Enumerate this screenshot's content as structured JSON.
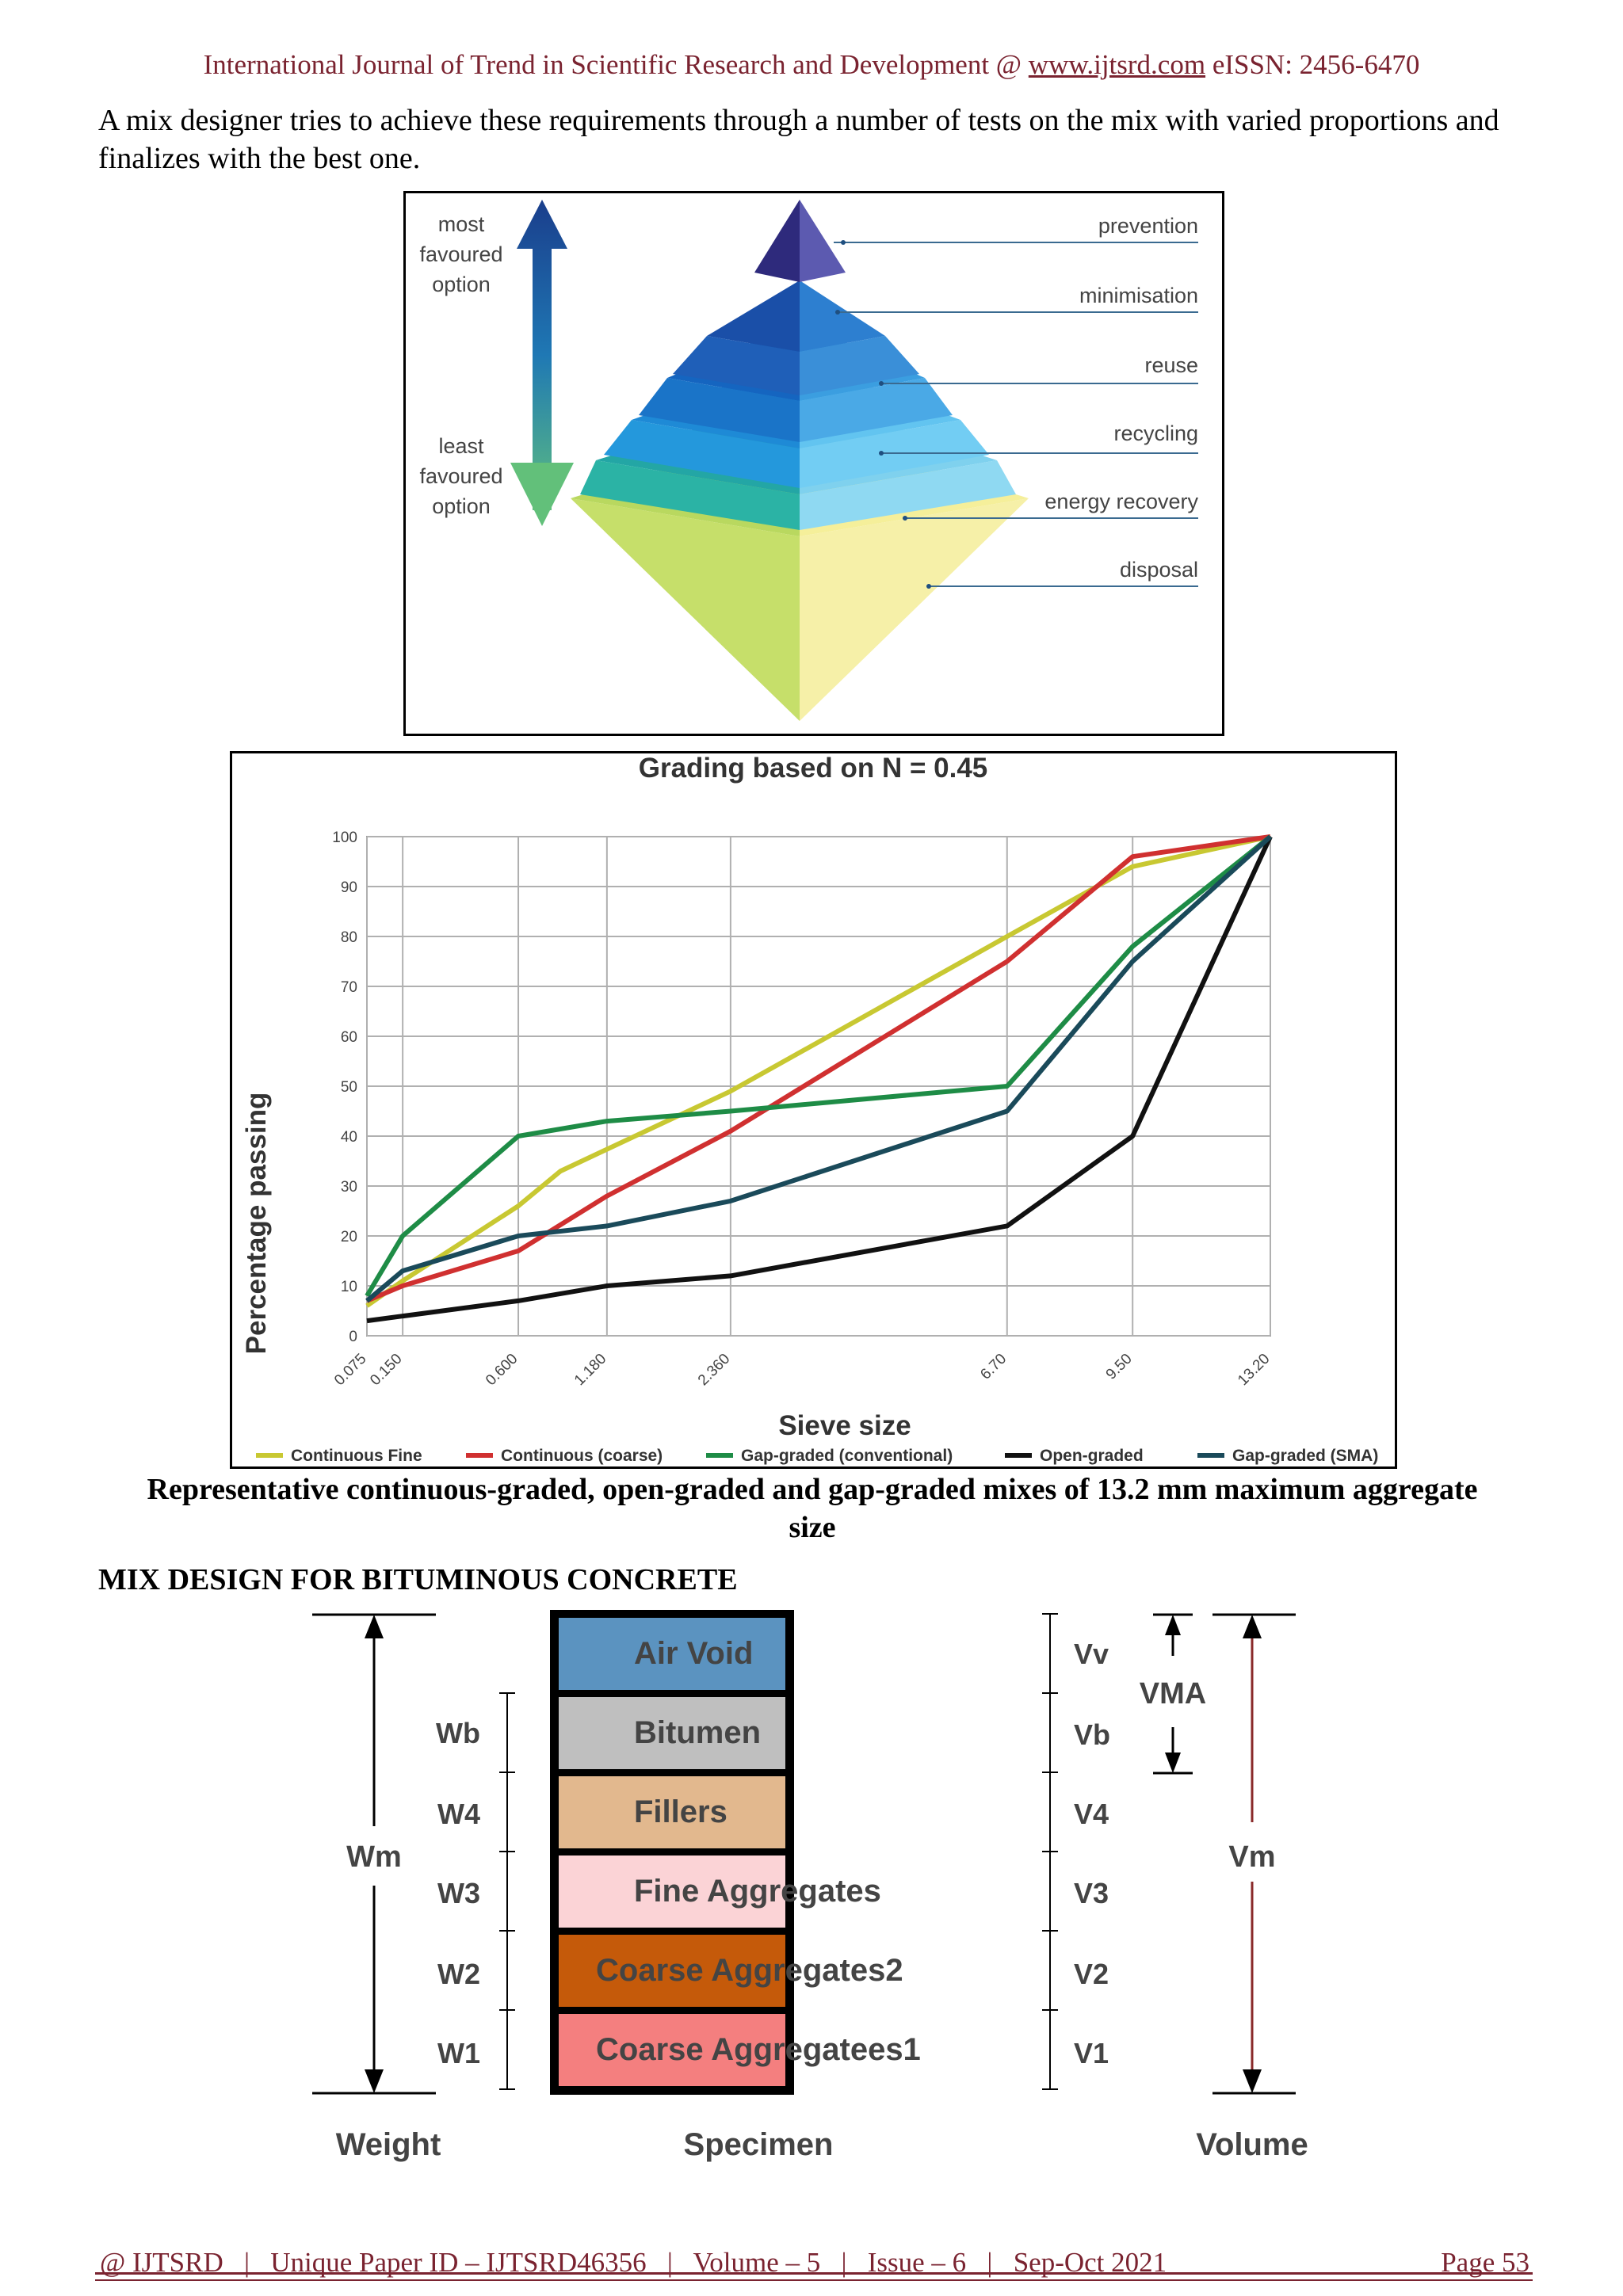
{
  "header": {
    "journal": "International Journal of Trend in Scientific Research and Development @",
    "url": "www.ijtsrd.com",
    "eissn": "eISSN: 2456-6470"
  },
  "intro_paragraph": "A mix designer tries to achieve these requirements through a number of tests on the mix with varied proportions and finalizes with the best one.",
  "pyramid": {
    "top_label": [
      "most",
      "favoured",
      "option"
    ],
    "bottom_label": [
      "least",
      "favoured",
      "option"
    ],
    "levels": [
      "prevention",
      "minimisation",
      "reuse",
      "recycling",
      "energy recovery",
      "disposal"
    ]
  },
  "chart_data": {
    "type": "line",
    "title": "Grading based on N = 0.45",
    "xlabel": "Sieve size",
    "ylabel": "Percentage passing",
    "x_tick_labels": [
      "0.075",
      "0.150",
      "0.600",
      "1.180",
      "2.360",
      "6.70",
      "9.50",
      "13.20"
    ],
    "x": [
      0.075,
      0.15,
      0.6,
      1.18,
      2.36,
      6.7,
      9.5,
      13.2
    ],
    "x_scale": "power 0.45",
    "ylim": [
      0,
      100
    ],
    "y_ticks": [
      0,
      10,
      20,
      30,
      40,
      50,
      60,
      70,
      80,
      90,
      100
    ],
    "grid": true,
    "legend_position": "bottom",
    "series": [
      {
        "name": "Continuous Fine",
        "color": "#c8c832",
        "x": [
          0.075,
          0.15,
          0.6,
          0.85,
          2.36,
          6.7,
          9.5,
          13.2
        ],
        "values": [
          6,
          11,
          26,
          33,
          49,
          80,
          94,
          100
        ]
      },
      {
        "name": "Continuous (coarse)",
        "color": "#d03030",
        "x": [
          0.075,
          0.15,
          0.6,
          1.18,
          2.36,
          6.7,
          9.5,
          13.2
        ],
        "values": [
          7,
          10,
          17,
          28,
          41,
          75,
          96,
          100
        ]
      },
      {
        "name": "Gap-graded (conventional)",
        "color": "#1e8c46",
        "x": [
          0.075,
          0.15,
          0.6,
          1.18,
          2.36,
          6.7,
          9.5,
          13.2
        ],
        "values": [
          8,
          20,
          40,
          43,
          45,
          50,
          78,
          100
        ]
      },
      {
        "name": "Open-graded",
        "color": "#111111",
        "x": [
          0.075,
          0.6,
          1.18,
          2.36,
          6.7,
          9.5,
          13.2
        ],
        "values": [
          3,
          7,
          10,
          12,
          22,
          40,
          100
        ]
      },
      {
        "name": "Gap-graded (SMA)",
        "color": "#1a4a5a",
        "x": [
          0.075,
          0.15,
          0.6,
          1.18,
          2.36,
          6.7,
          9.5,
          13.2
        ],
        "values": [
          7,
          13,
          20,
          22,
          27,
          45,
          75,
          100
        ]
      }
    ]
  },
  "caption": "Representative continuous-graded, open-graded and gap-graded mixes of 13.2 mm maximum aggregate size",
  "section_heading": "MIX DESIGN FOR BITUMINOUS CONCRETE",
  "mix_design": {
    "layers": [
      {
        "label": "Air Void",
        "color": "#5b93c0"
      },
      {
        "label": "Bitumen",
        "color": "#bfbfbf"
      },
      {
        "label": "Fillers",
        "color": "#e2b88e"
      },
      {
        "label": "Fine Aggregates",
        "color": "#fbd3d6"
      },
      {
        "label": "Coarse Aggregates2",
        "color": "#c55a0a"
      },
      {
        "label": "Coarse Aggregatees1",
        "color": "#f47f7f"
      }
    ],
    "weights": [
      "Wb",
      "W4",
      "W3",
      "W2",
      "W1"
    ],
    "volumes": [
      "Vv",
      "Vb",
      "V4",
      "V3",
      "V2",
      "V1"
    ],
    "wm": "Wm",
    "vma": "VMA",
    "vm": "Vm",
    "weight_label": "Weight",
    "specimen_label": "Specimen",
    "volume_label": "Volume"
  },
  "footer": {
    "left": "@ IJTSRD   |   Unique Paper ID – IJTSRD46356   |   Volume – 5   |   Issue – 6   |   Sep-Oct 2021",
    "right": "Page 53"
  }
}
